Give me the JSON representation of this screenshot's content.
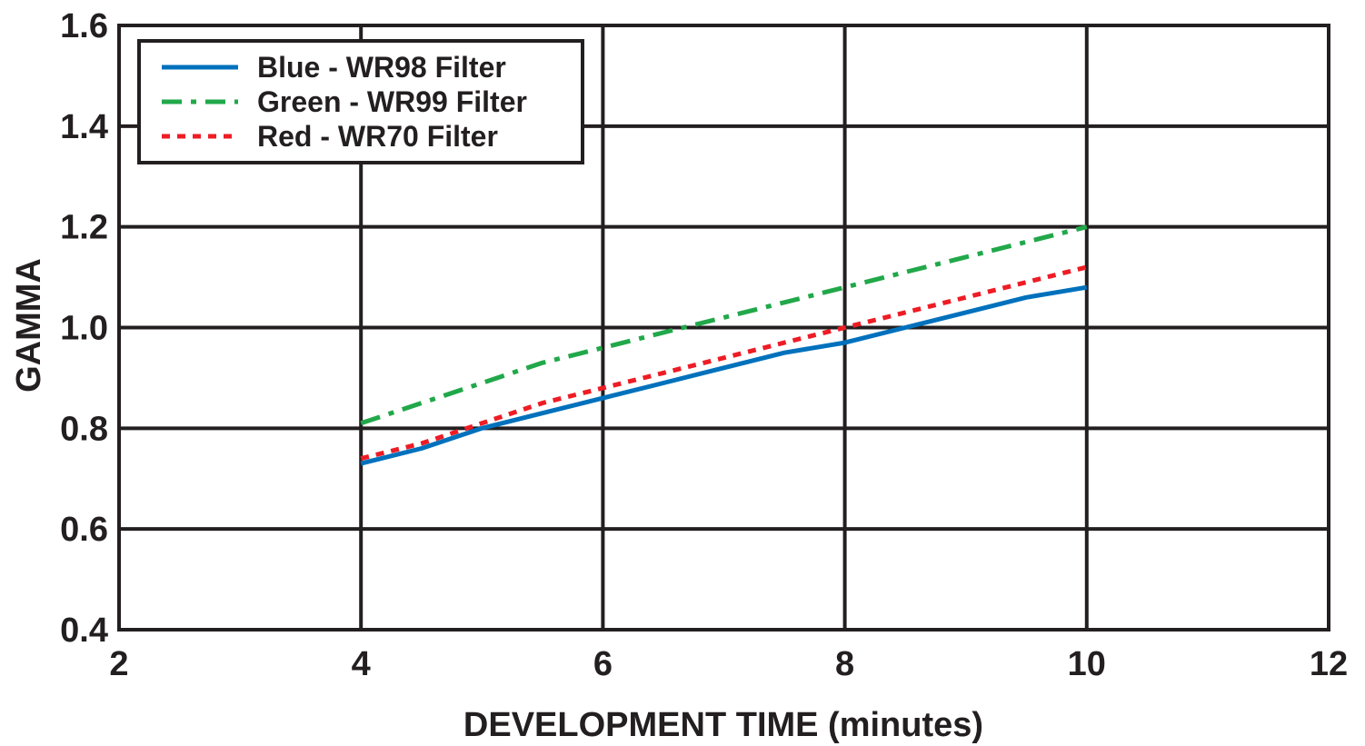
{
  "chart_data": {
    "type": "line",
    "xlabel": "DEVELOPMENT TIME (minutes)",
    "ylabel": "GAMMA",
    "xlim": [
      2,
      12
    ],
    "ylim": [
      0.4,
      1.6
    ],
    "xticks": [
      2,
      4,
      6,
      8,
      10,
      12
    ],
    "yticks": [
      0.4,
      0.6,
      0.8,
      1.0,
      1.2,
      1.4,
      1.6
    ],
    "xtick_labels": [
      "2",
      "4",
      "6",
      "8",
      "10",
      "12"
    ],
    "ytick_labels": [
      "0.4",
      "0.6",
      "0.8",
      "1.0",
      "1.2",
      "1.4",
      "1.6"
    ],
    "grid": true,
    "legend_position": "top-left",
    "series": [
      {
        "name": "Blue - WR98 Filter",
        "color": "#0071bc",
        "style": "solid",
        "x": [
          4,
          4.5,
          5,
          5.5,
          6,
          6.5,
          7,
          7.5,
          8,
          8.5,
          9,
          9.5,
          10
        ],
        "y": [
          0.73,
          0.76,
          0.8,
          0.83,
          0.86,
          0.89,
          0.92,
          0.95,
          0.97,
          1.0,
          1.03,
          1.06,
          1.08
        ]
      },
      {
        "name": "Green - WR99 Filter",
        "color": "#21a84a",
        "style": "dashdot",
        "x": [
          4,
          4.5,
          5,
          5.5,
          6,
          6.5,
          7,
          7.5,
          8,
          8.5,
          9,
          9.5,
          10
        ],
        "y": [
          0.81,
          0.85,
          0.89,
          0.93,
          0.96,
          0.99,
          1.02,
          1.05,
          1.08,
          1.11,
          1.14,
          1.17,
          1.2
        ]
      },
      {
        "name": "Red - WR70 Filter",
        "color": "#ee1c25",
        "style": "dotted",
        "x": [
          4,
          4.5,
          5,
          5.5,
          6,
          6.5,
          7,
          7.5,
          8,
          8.5,
          9,
          9.5,
          10
        ],
        "y": [
          0.74,
          0.77,
          0.81,
          0.85,
          0.88,
          0.91,
          0.94,
          0.97,
          1.0,
          1.03,
          1.06,
          1.09,
          1.12
        ]
      }
    ]
  }
}
